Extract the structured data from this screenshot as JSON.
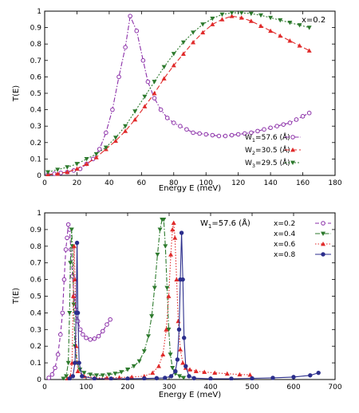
{
  "chart_data": [
    {
      "type": "line",
      "annotation": "x=0.2",
      "xlabel": "Energy E (meV)",
      "ylabel": "T(E)",
      "xlim": [
        0,
        180
      ],
      "ylim": [
        0,
        1
      ],
      "xticks": [
        "0",
        "20",
        "40",
        "60",
        "80",
        "100",
        "120",
        "140",
        "160",
        "180"
      ],
      "yticks": [
        "0",
        "0.1",
        "0.2",
        "0.3",
        "0.4",
        "0.5",
        "0.6",
        "0.7",
        "0.8",
        "0.9",
        "1"
      ],
      "legend_position": "bottom-right",
      "grid": false,
      "series": [
        {
          "name": "W",
          "sub": "1",
          "suffix": "=57.6 (Å)",
          "color": "#8b2fa8",
          "marker": "open-circle",
          "dash": "6,2,1.5,2",
          "points": [
            [
              2,
              0.005
            ],
            [
              6,
              0.01
            ],
            [
              10,
              0.015
            ],
            [
              14,
              0.02
            ],
            [
              18,
              0.03
            ],
            [
              22,
              0.04
            ],
            [
              26,
              0.07
            ],
            [
              30,
              0.1
            ],
            [
              34,
              0.16
            ],
            [
              38,
              0.26
            ],
            [
              42,
              0.4
            ],
            [
              46,
              0.6
            ],
            [
              50,
              0.78
            ],
            [
              53,
              0.97
            ],
            [
              57,
              0.88
            ],
            [
              61,
              0.7
            ],
            [
              64,
              0.57
            ],
            [
              68,
              0.47
            ],
            [
              72,
              0.4
            ],
            [
              76,
              0.35
            ],
            [
              80,
              0.32
            ],
            [
              84,
              0.3
            ],
            [
              88,
              0.28
            ],
            [
              92,
              0.26
            ],
            [
              96,
              0.255
            ],
            [
              100,
              0.25
            ],
            [
              104,
              0.245
            ],
            [
              108,
              0.24
            ],
            [
              112,
              0.24
            ],
            [
              116,
              0.245
            ],
            [
              120,
              0.25
            ],
            [
              124,
              0.255
            ],
            [
              128,
              0.26
            ],
            [
              132,
              0.27
            ],
            [
              136,
              0.28
            ],
            [
              140,
              0.29
            ],
            [
              144,
              0.3
            ],
            [
              148,
              0.31
            ],
            [
              152,
              0.32
            ],
            [
              156,
              0.34
            ],
            [
              160,
              0.36
            ],
            [
              164,
              0.38
            ]
          ]
        },
        {
          "name": "W",
          "sub": "2",
          "suffix": "=30.5 (Å)",
          "color": "#e02a2a",
          "marker": "triangle-up",
          "dash": "6,3",
          "points": [
            [
              2,
              0.005
            ],
            [
              8,
              0.01
            ],
            [
              14,
              0.02
            ],
            [
              20,
              0.04
            ],
            [
              26,
              0.07
            ],
            [
              32,
              0.11
            ],
            [
              38,
              0.16
            ],
            [
              44,
              0.21
            ],
            [
              50,
              0.27
            ],
            [
              56,
              0.34
            ],
            [
              62,
              0.42
            ],
            [
              68,
              0.5
            ],
            [
              74,
              0.59
            ],
            [
              80,
              0.67
            ],
            [
              86,
              0.74
            ],
            [
              92,
              0.81
            ],
            [
              98,
              0.87
            ],
            [
              104,
              0.92
            ],
            [
              110,
              0.95
            ],
            [
              116,
              0.97
            ],
            [
              122,
              0.96
            ],
            [
              128,
              0.94
            ],
            [
              134,
              0.91
            ],
            [
              140,
              0.88
            ],
            [
              146,
              0.85
            ],
            [
              152,
              0.82
            ],
            [
              158,
              0.79
            ],
            [
              164,
              0.76
            ]
          ]
        },
        {
          "name": "W",
          "sub": "3",
          "suffix": "=29.5 (Å)",
          "color": "#2d7a2d",
          "marker": "triangle-down",
          "dash": "2,2",
          "points": [
            [
              2,
              0.02
            ],
            [
              8,
              0.035
            ],
            [
              14,
              0.05
            ],
            [
              20,
              0.07
            ],
            [
              26,
              0.1
            ],
            [
              32,
              0.13
            ],
            [
              38,
              0.17
            ],
            [
              44,
              0.23
            ],
            [
              50,
              0.3
            ],
            [
              56,
              0.39
            ],
            [
              62,
              0.48
            ],
            [
              68,
              0.57
            ],
            [
              74,
              0.66
            ],
            [
              80,
              0.74
            ],
            [
              86,
              0.81
            ],
            [
              92,
              0.87
            ],
            [
              98,
              0.92
            ],
            [
              104,
              0.955
            ],
            [
              110,
              0.98
            ],
            [
              116,
              0.99
            ],
            [
              122,
              0.99
            ],
            [
              128,
              0.985
            ],
            [
              134,
              0.975
            ],
            [
              140,
              0.96
            ],
            [
              146,
              0.945
            ],
            [
              152,
              0.93
            ],
            [
              158,
              0.915
            ],
            [
              164,
              0.9
            ]
          ]
        }
      ]
    },
    {
      "type": "line",
      "annotation": {
        "name": "W",
        "sub": "1",
        "suffix": "=57.6 (Å)"
      },
      "xlabel": "Energy E (meV)",
      "ylabel": "T(E)",
      "xlim": [
        0,
        700
      ],
      "ylim": [
        0,
        1
      ],
      "xticks": [
        "0",
        "100",
        "200",
        "300",
        "400",
        "500",
        "600",
        "700"
      ],
      "yticks": [
        "0",
        "0.1",
        "0.2",
        "0.3",
        "0.4",
        "0.5",
        "0.6",
        "0.7",
        "0.8",
        "0.9",
        "1"
      ],
      "legend_position": "top-right",
      "grid": false,
      "series": [
        {
          "name": "x=0.2",
          "color": "#8b2fa8",
          "marker": "open-circle",
          "dash": "5,3",
          "points": [
            [
              10,
              0.01
            ],
            [
              18,
              0.03
            ],
            [
              25,
              0.07
            ],
            [
              32,
              0.15
            ],
            [
              38,
              0.27
            ],
            [
              43,
              0.4
            ],
            [
              47,
              0.6
            ],
            [
              51,
              0.78
            ],
            [
              54,
              0.85
            ],
            [
              57,
              0.93
            ],
            [
              60,
              0.9
            ],
            [
              63,
              0.78
            ],
            [
              67,
              0.62
            ],
            [
              71,
              0.5
            ],
            [
              75,
              0.42
            ],
            [
              80,
              0.35
            ],
            [
              86,
              0.3
            ],
            [
              92,
              0.27
            ],
            [
              100,
              0.25
            ],
            [
              110,
              0.24
            ],
            [
              120,
              0.245
            ],
            [
              130,
              0.26
            ],
            [
              140,
              0.29
            ],
            [
              150,
              0.33
            ],
            [
              158,
              0.36
            ]
          ]
        },
        {
          "name": "x=0.4",
          "color": "#2d7a2d",
          "marker": "triangle-down",
          "dash": "6,2,1.5,2",
          "points": [
            [
              45,
              0.005
            ],
            [
              52,
              0.02
            ],
            [
              57,
              0.1
            ],
            [
              60,
              0.4
            ],
            [
              62,
              0.7
            ],
            [
              65,
              0.9
            ],
            [
              67,
              0.8
            ],
            [
              70,
              0.45
            ],
            [
              73,
              0.2
            ],
            [
              78,
              0.1
            ],
            [
              85,
              0.06
            ],
            [
              95,
              0.04
            ],
            [
              110,
              0.03
            ],
            [
              125,
              0.025
            ],
            [
              140,
              0.025
            ],
            [
              155,
              0.03
            ],
            [
              170,
              0.035
            ],
            [
              185,
              0.045
            ],
            [
              200,
              0.06
            ],
            [
              215,
              0.08
            ],
            [
              228,
              0.11
            ],
            [
              240,
              0.17
            ],
            [
              250,
              0.26
            ],
            [
              258,
              0.38
            ],
            [
              265,
              0.55
            ],
            [
              272,
              0.75
            ],
            [
              278,
              0.9
            ],
            [
              283,
              0.96
            ],
            [
              287,
              0.96
            ],
            [
              291,
              0.8
            ],
            [
              295,
              0.55
            ],
            [
              299,
              0.3
            ],
            [
              303,
              0.15
            ],
            [
              308,
              0.07
            ],
            [
              315,
              0.035
            ],
            [
              325,
              0.02
            ],
            [
              335,
              0.01
            ]
          ]
        },
        {
          "name": "x=0.6",
          "color": "#e02a2a",
          "marker": "triangle-up",
          "dash": "1.5,2",
          "points": [
            [
              55,
              0.005
            ],
            [
              62,
              0.02
            ],
            [
              66,
              0.1
            ],
            [
              69,
              0.5
            ],
            [
              71,
              0.8
            ],
            [
              73,
              0.6
            ],
            [
              76,
              0.2
            ],
            [
              80,
              0.05
            ],
            [
              95,
              0.02
            ],
            [
              120,
              0.01
            ],
            [
              150,
              0.01
            ],
            [
              180,
              0.012
            ],
            [
              210,
              0.015
            ],
            [
              240,
              0.02
            ],
            [
              260,
              0.04
            ],
            [
              275,
              0.08
            ],
            [
              285,
              0.15
            ],
            [
              293,
              0.3
            ],
            [
              299,
              0.5
            ],
            [
              304,
              0.75
            ],
            [
              308,
              0.9
            ],
            [
              311,
              0.94
            ],
            [
              314,
              0.85
            ],
            [
              318,
              0.6
            ],
            [
              322,
              0.35
            ],
            [
              327,
              0.18
            ],
            [
              333,
              0.1
            ],
            [
              340,
              0.07
            ],
            [
              350,
              0.06
            ],
            [
              365,
              0.05
            ],
            [
              385,
              0.045
            ],
            [
              410,
              0.04
            ],
            [
              440,
              0.035
            ],
            [
              470,
              0.03
            ],
            [
              495,
              0.028
            ]
          ]
        },
        {
          "name": "x=0.8",
          "color": "#2b2e8c",
          "marker": "filled-circle",
          "dash": "",
          "points": [
            [
              60,
              0.005
            ],
            [
              68,
              0.02
            ],
            [
              73,
              0.1
            ],
            [
              76,
              0.4
            ],
            [
              78,
              0.82
            ],
            [
              80,
              0.4
            ],
            [
              83,
              0.1
            ],
            [
              90,
              0.02
            ],
            [
              120,
              0.005
            ],
            [
              160,
              0.005
            ],
            [
              200,
              0.005
            ],
            [
              240,
              0.006
            ],
            [
              270,
              0.008
            ],
            [
              290,
              0.01
            ],
            [
              305,
              0.02
            ],
            [
              315,
              0.05
            ],
            [
              320,
              0.12
            ],
            [
              324,
              0.3
            ],
            [
              327,
              0.6
            ],
            [
              330,
              0.88
            ],
            [
              333,
              0.6
            ],
            [
              336,
              0.25
            ],
            [
              340,
              0.08
            ],
            [
              348,
              0.02
            ],
            [
              360,
              0.008
            ],
            [
              400,
              0.005
            ],
            [
              450,
              0.005
            ],
            [
              500,
              0.007
            ],
            [
              550,
              0.01
            ],
            [
              600,
              0.015
            ],
            [
              640,
              0.025
            ],
            [
              660,
              0.04
            ]
          ]
        }
      ]
    }
  ]
}
